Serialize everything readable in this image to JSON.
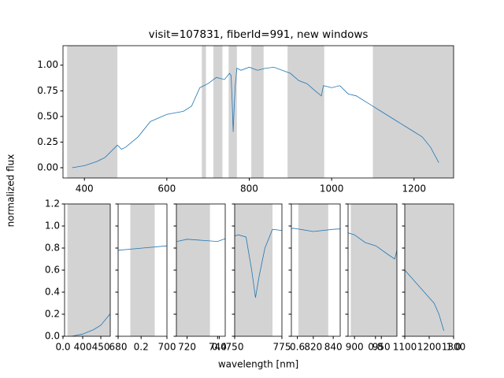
{
  "chart_data": [
    {
      "type": "line",
      "title": "visit=107831, fiberId=991, new windows",
      "xlim": [
        348,
        1296
      ],
      "ylim": [
        -0.1,
        1.19
      ],
      "xticks": [
        400,
        600,
        800,
        1000,
        1200
      ],
      "yticks": [
        {
          "value": 0,
          "label": "0.00"
        },
        {
          "value": 0.25,
          "label": "0.25"
        },
        {
          "value": 0.5,
          "label": "0.50"
        },
        {
          "value": 0.75,
          "label": "0.75"
        },
        {
          "value": 1,
          "label": "1.00"
        }
      ],
      "windows": [
        [
          358,
          480
        ],
        [
          685,
          695
        ],
        [
          713,
          735
        ],
        [
          750,
          770
        ],
        [
          805,
          835
        ],
        [
          893,
          982
        ],
        [
          1100,
          1296
        ]
      ],
      "window_color": "#d3d3d3",
      "x": [
        370,
        400,
        430,
        450,
        470,
        480,
        490,
        500,
        530,
        560,
        600,
        640,
        660,
        680,
        690,
        700,
        720,
        740,
        752,
        756,
        759,
        761,
        763,
        766,
        770,
        780,
        800,
        820,
        840,
        860,
        880,
        900,
        920,
        940,
        960,
        975,
        980,
        1000,
        1020,
        1040,
        1060,
        1080,
        1100,
        1120,
        1140,
        1160,
        1180,
        1200,
        1220,
        1240,
        1260
      ],
      "series": [
        {
          "color": "#1f77b4",
          "values": [
            0.0,
            0.02,
            0.06,
            0.1,
            0.18,
            0.22,
            0.18,
            0.2,
            0.3,
            0.45,
            0.52,
            0.55,
            0.6,
            0.78,
            0.8,
            0.82,
            0.88,
            0.86,
            0.92,
            0.9,
            0.6,
            0.35,
            0.55,
            0.8,
            0.97,
            0.95,
            0.98,
            0.95,
            0.97,
            0.98,
            0.95,
            0.92,
            0.85,
            0.82,
            0.75,
            0.7,
            0.8,
            0.78,
            0.8,
            0.72,
            0.7,
            0.65,
            0.6,
            0.55,
            0.5,
            0.45,
            0.4,
            0.35,
            0.3,
            0.2,
            0.05
          ]
        }
      ]
    },
    {
      "type": "windows",
      "xlabel": "wavelength [nm]",
      "ylabel": "normalized flux",
      "ylim": [
        0,
        1.2
      ],
      "yticks": [
        {
          "value": 0,
          "label": "0.0"
        },
        0.2,
        0.4,
        0.6,
        0.8,
        {
          "value": 1,
          "label": "1.0"
        },
        1.2
      ],
      "xlim": [
        0,
        1
      ],
      "xticks": [
        {
          "value": 0,
          "label": "0.0"
        },
        0.2,
        0.4,
        0.6,
        0.8,
        {
          "value": 1,
          "label": "1.0"
        }
      ],
      "panels": [
        {
          "xlim": [
            350,
            476
          ],
          "xticks": [
            400,
            450
          ]
        },
        {
          "xlim": [
            680,
            700
          ],
          "xticks": [
            680,
            700
          ]
        },
        {
          "xlim": [
            713,
            745
          ],
          "xticks": [
            720,
            740
          ]
        },
        {
          "xlim": [
            750,
            775
          ],
          "xticks": [
            750,
            775
          ]
        },
        {
          "xlim": [
            798,
            847
          ],
          "xticks": [
            820,
            840
          ]
        },
        {
          "xlim": [
            888,
            979
          ],
          "xticks": [
            900,
            950
          ]
        },
        {
          "xlim": [
            1100,
            1300
          ],
          "xticks": [
            1100,
            1200,
            1300
          ]
        }
      ]
    }
  ]
}
